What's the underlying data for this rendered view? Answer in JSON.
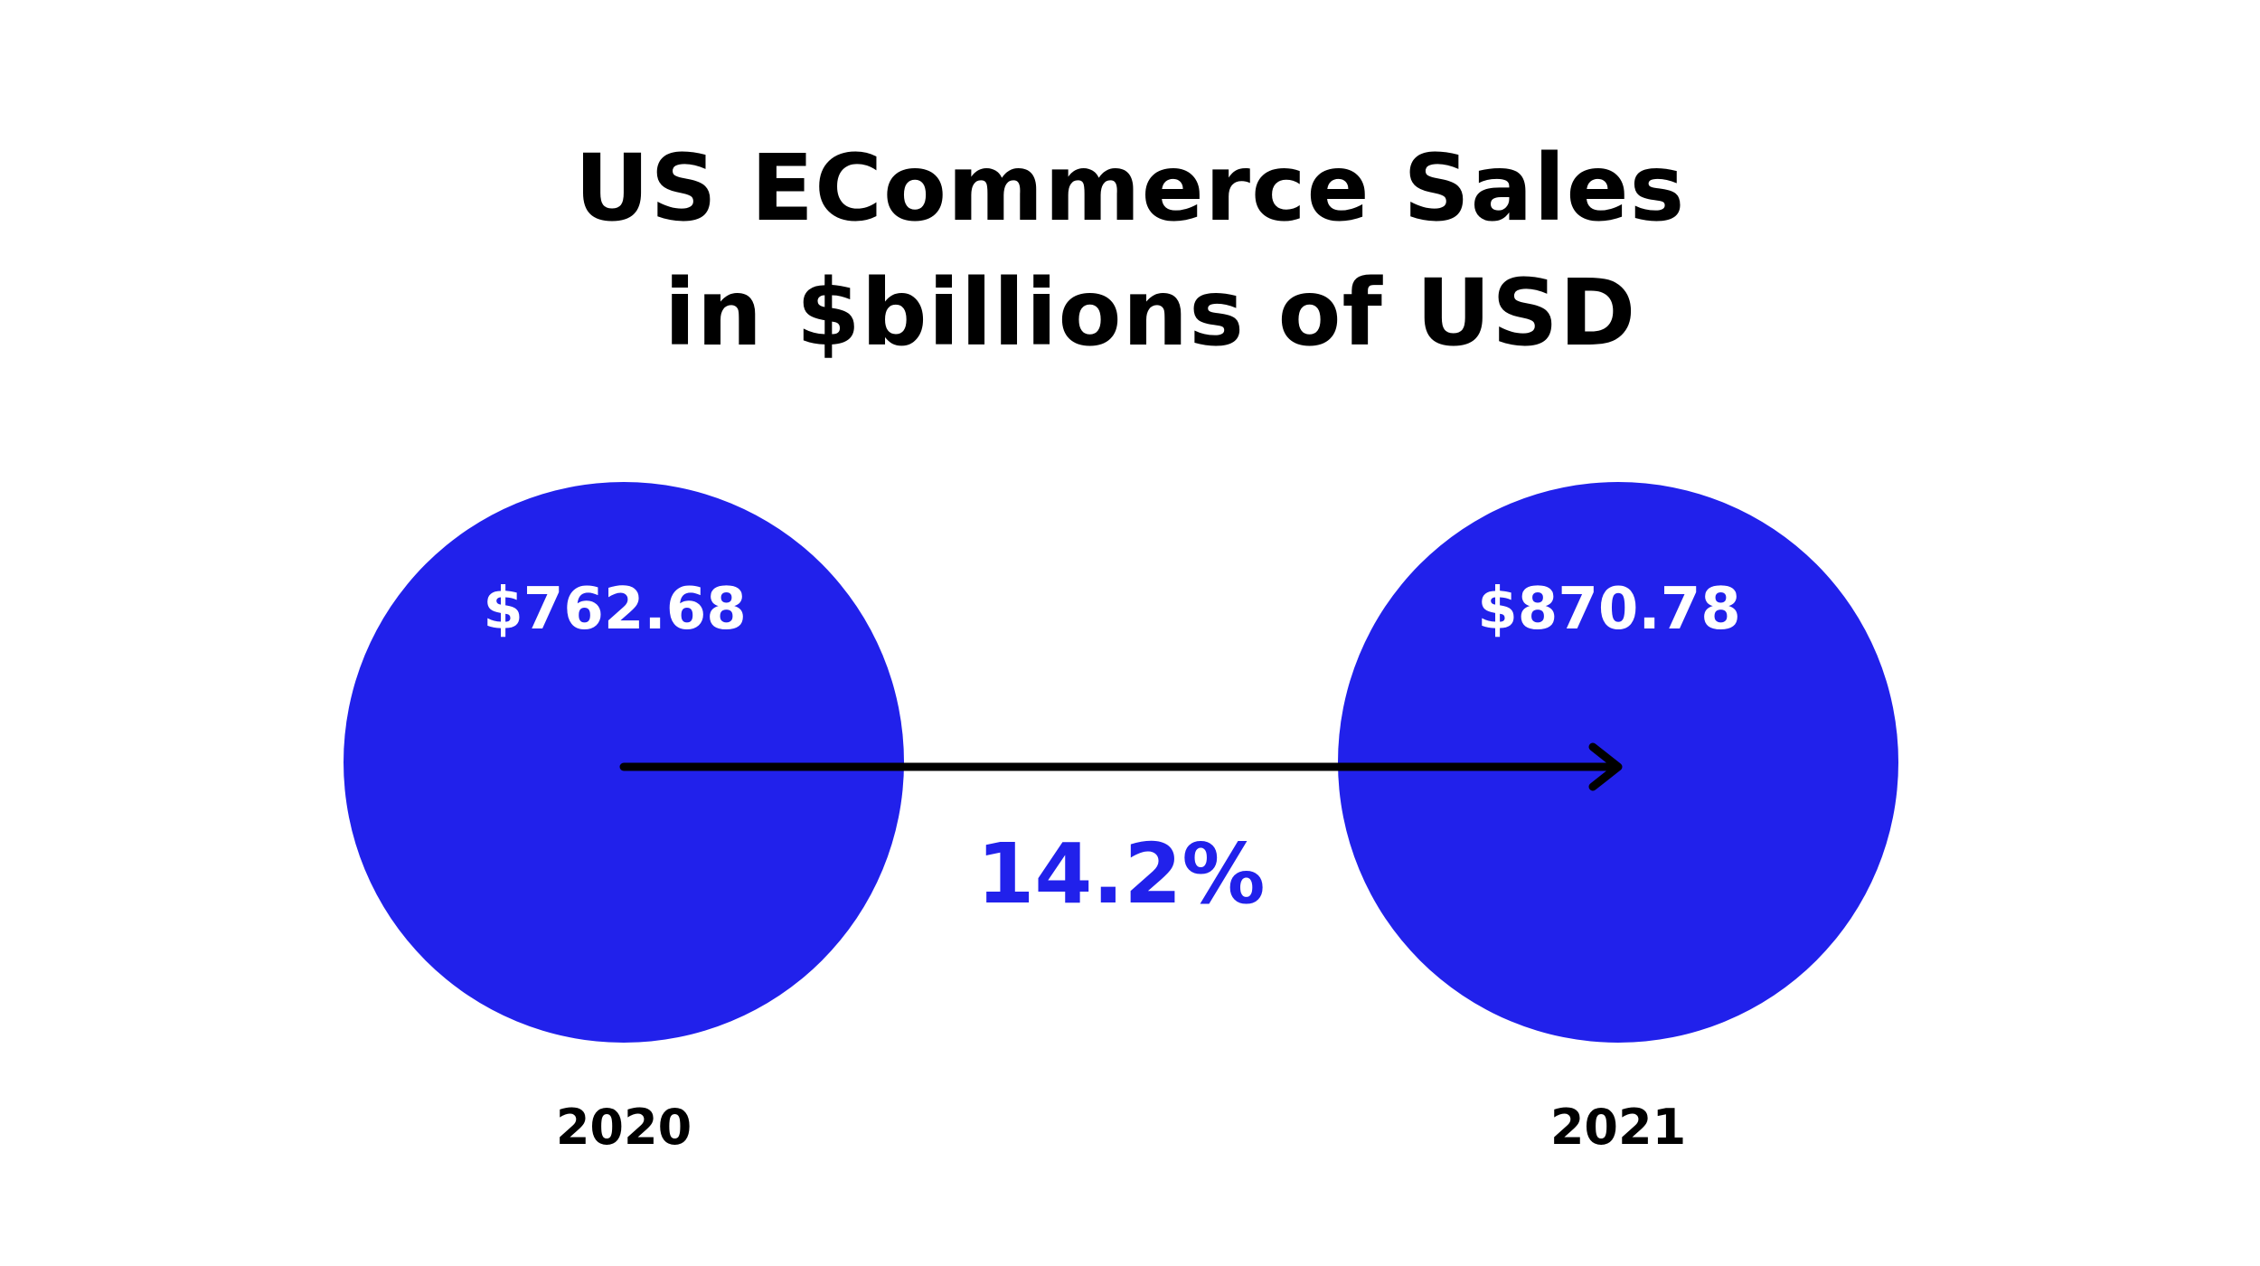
{
  "chart_data": {
    "type": "bubble-comparison",
    "title_lines": [
      "US ECommerce Sales",
      "in $billions of USD"
    ],
    "categories": [
      "2020",
      "2021"
    ],
    "values": [
      762.68,
      870.78
    ],
    "value_labels": [
      "$762.68",
      "$870.78"
    ],
    "growth_label": "14.2%",
    "colors": {
      "bubble": "#2121eb",
      "growth_text": "#2121eb",
      "arrow": "#000000",
      "year_text": "#000000",
      "value_text": "#ffffff"
    }
  }
}
